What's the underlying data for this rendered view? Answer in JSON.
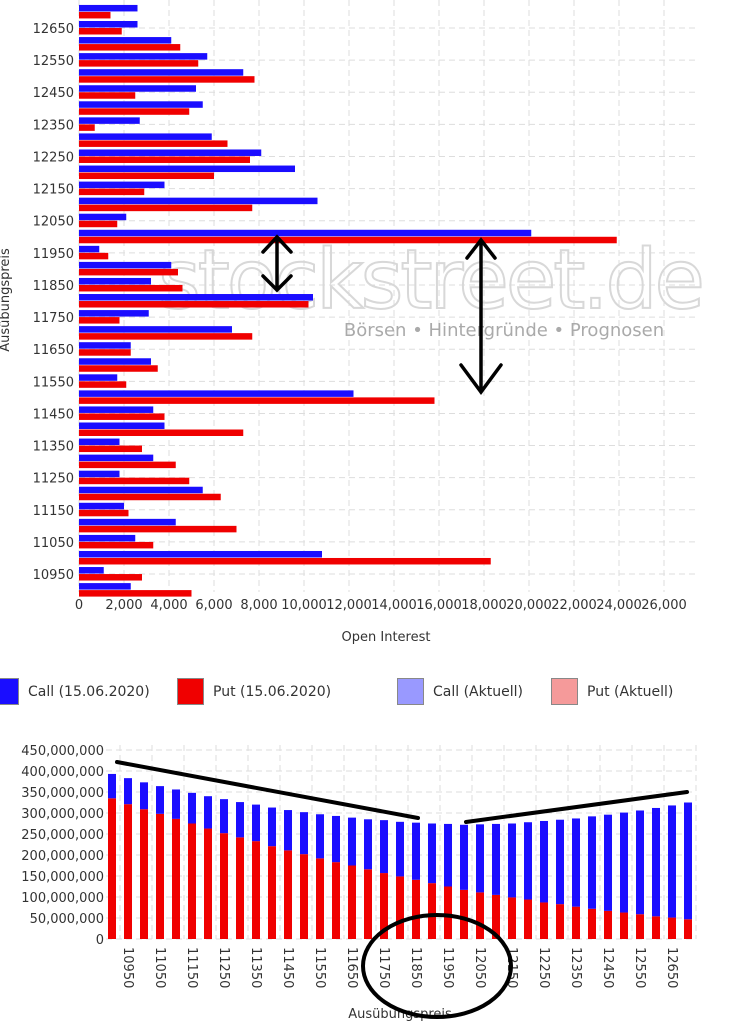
{
  "colors": {
    "call": "#1a0dff",
    "put": "#f00000",
    "call_current": "#9999ff",
    "put_current": "#f59a9a",
    "grid": "#dddddd",
    "annotation": "#000000"
  },
  "watermark": {
    "brand": "stockstreet.de",
    "tagline": "Börsen • Hintergründe • Prognosen"
  },
  "legend": [
    {
      "label": "Call (15.06.2020)",
      "color": "#1a0dff"
    },
    {
      "label": "Put (15.06.2020)",
      "color": "#f00000"
    },
    {
      "label": "Call (Aktuell)",
      "color": "#9999ff"
    },
    {
      "label": "Put (Aktuell)",
      "color": "#f59a9a"
    }
  ],
  "chart_data": [
    {
      "type": "bar",
      "orientation": "horizontal",
      "xlabel": "Open Interest",
      "ylabel": "Ausübungspreis",
      "xlim": [
        0,
        27000
      ],
      "xticks": [
        "0",
        "2,000",
        "4,000",
        "6,000",
        "8,000",
        "10,000",
        "12,000",
        "14,000",
        "16,000",
        "18,000",
        "20,000",
        "22,000",
        "24,000",
        "26,000"
      ],
      "ytick_labels": [
        "10950",
        "11050",
        "11150",
        "11250",
        "11350",
        "11450",
        "11550",
        "11650",
        "11750",
        "11850",
        "11950",
        "12050",
        "12150",
        "12250",
        "12350",
        "12450",
        "12550",
        "12650"
      ],
      "grid": true,
      "categories": [
        10900,
        10950,
        11000,
        11050,
        11100,
        11150,
        11200,
        11250,
        11300,
        11350,
        11400,
        11450,
        11500,
        11550,
        11600,
        11650,
        11700,
        11750,
        11800,
        11850,
        11900,
        11950,
        12000,
        12050,
        12100,
        12150,
        12200,
        12250,
        12300,
        12350,
        12400,
        12450,
        12500,
        12550,
        12600,
        12650,
        12700
      ],
      "series": [
        {
          "name": "Call (15.06.2020)",
          "values": [
            2300,
            1100,
            10800,
            2500,
            4300,
            2000,
            5500,
            1800,
            3300,
            1800,
            3800,
            3300,
            12200,
            1700,
            3200,
            2300,
            6800,
            3100,
            10400,
            3200,
            4100,
            900,
            20100,
            2100,
            10600,
            3800,
            9600,
            8100,
            5900,
            2700,
            5500,
            5200,
            7300,
            5700,
            4100,
            2600,
            2600
          ]
        },
        {
          "name": "Put (15.06.2020)",
          "values": [
            5000,
            2800,
            18300,
            3300,
            7000,
            2200,
            6300,
            4900,
            4300,
            2800,
            7300,
            3800,
            15800,
            2100,
            3500,
            2300,
            7700,
            1800,
            10200,
            4600,
            4400,
            1300,
            23900,
            1700,
            7700,
            2900,
            6000,
            7600,
            6600,
            700,
            4900,
            2500,
            7800,
            5300,
            4500,
            1900,
            1400
          ]
        }
      ]
    },
    {
      "type": "bar",
      "stacked": true,
      "xlabel": "Ausübungspreis",
      "ylabel": "",
      "ylim": [
        0,
        450000000
      ],
      "yticks": [
        "0",
        "50,000,000",
        "100,000,000",
        "150,000,000",
        "200,000,000",
        "250,000,000",
        "300,000,000",
        "350,000,000",
        "400,000,000",
        "450,000,000"
      ],
      "xtick_labels": [
        "10950",
        "11050",
        "11150",
        "11250",
        "11350",
        "11450",
        "11550",
        "11650",
        "11750",
        "11850",
        "11950",
        "12050",
        "12150",
        "12250",
        "12350",
        "12450",
        "12550",
        "12650"
      ],
      "grid": true,
      "categories": [
        10900,
        10950,
        11000,
        11050,
        11100,
        11150,
        11200,
        11250,
        11300,
        11350,
        11400,
        11450,
        11500,
        11550,
        11600,
        11650,
        11700,
        11750,
        11800,
        11850,
        11900,
        11950,
        12000,
        12050,
        12100,
        12150,
        12200,
        12250,
        12300,
        12350,
        12400,
        12450,
        12500,
        12550,
        12600,
        12650,
        12700
      ],
      "series": [
        {
          "name": "Put",
          "values": [
            335000000,
            321000000,
            309000000,
            298000000,
            286000000,
            275000000,
            263000000,
            252000000,
            242000000,
            233000000,
            221000000,
            211000000,
            202000000,
            192000000,
            183000000,
            175000000,
            166000000,
            157000000,
            149000000,
            141000000,
            133000000,
            125000000,
            117000000,
            111000000,
            105000000,
            99000000,
            94000000,
            87000000,
            83000000,
            77000000,
            72000000,
            67000000,
            63000000,
            59000000,
            54000000,
            51000000,
            47000000
          ]
        },
        {
          "name": "Call",
          "values": [
            58000000,
            62000000,
            64000000,
            66000000,
            70000000,
            73000000,
            77000000,
            81000000,
            84000000,
            87000000,
            92000000,
            96000000,
            100000000,
            105000000,
            110000000,
            114000000,
            119000000,
            126000000,
            130000000,
            136000000,
            142000000,
            149000000,
            155000000,
            162000000,
            169000000,
            176000000,
            184000000,
            194000000,
            201000000,
            210000000,
            220000000,
            229000000,
            238000000,
            247000000,
            258000000,
            267000000,
            278000000
          ]
        }
      ]
    }
  ]
}
